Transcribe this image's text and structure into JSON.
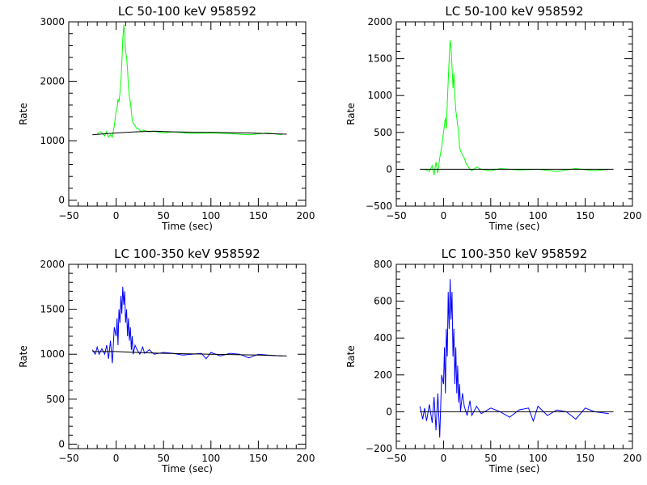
{
  "chart_data": [
    {
      "type": "line",
      "title": "LC 50-100 keV  958592",
      "xlabel": "Time (sec)",
      "ylabel": "Rate",
      "xlim": [
        -50,
        200
      ],
      "ylim": [
        -100,
        3000
      ],
      "xticks": [
        -50,
        0,
        50,
        100,
        150,
        200
      ],
      "yticks": [
        0,
        1000,
        2000,
        3000
      ],
      "series": [
        {
          "role": "data",
          "color": "#00ff00",
          "x": [
            -20,
            -16,
            -12,
            -10,
            -8,
            -6,
            -4,
            -2,
            0,
            1,
            2,
            3,
            4,
            5,
            6,
            7,
            8,
            9,
            10,
            11,
            12,
            13,
            14,
            15,
            16,
            17,
            18,
            20,
            22,
            24,
            26,
            28,
            30,
            35,
            40,
            50,
            60,
            80,
            100,
            120,
            140,
            160,
            175
          ],
          "y": [
            1120,
            1150,
            1080,
            1160,
            1060,
            1100,
            1060,
            1250,
            1500,
            1550,
            1700,
            1650,
            1800,
            2000,
            2300,
            2700,
            2950,
            2800,
            2500,
            2400,
            2200,
            1900,
            1750,
            1650,
            1500,
            1350,
            1300,
            1250,
            1200,
            1200,
            1150,
            1180,
            1170,
            1150,
            1160,
            1130,
            1150,
            1120,
            1130,
            1120,
            1100,
            1130,
            1100
          ]
        },
        {
          "role": "background",
          "color": "#000000",
          "x": [
            -25,
            0,
            20,
            40,
            60,
            100,
            140,
            180
          ],
          "y": [
            1100,
            1130,
            1150,
            1160,
            1150,
            1140,
            1130,
            1110
          ]
        }
      ]
    },
    {
      "type": "line",
      "title": "LC 50-100 keV  958592",
      "xlabel": "Time (sec)",
      "ylabel": "Rate",
      "xlim": [
        -50,
        200
      ],
      "ylim": [
        -500,
        2000
      ],
      "xticks": [
        -50,
        0,
        50,
        100,
        150,
        200
      ],
      "yticks": [
        -500,
        0,
        500,
        1000,
        1500,
        2000
      ],
      "series": [
        {
          "role": "data",
          "color": "#00ff00",
          "x": [
            -20,
            -15,
            -12,
            -10,
            -8,
            -6,
            -4,
            -2,
            0,
            1,
            2,
            3,
            4,
            5,
            6,
            7,
            8,
            9,
            10,
            11,
            12,
            13,
            14,
            15,
            16,
            17,
            18,
            20,
            22,
            24,
            26,
            28,
            30,
            35,
            40,
            50,
            60,
            80,
            100,
            120,
            140,
            160,
            175
          ],
          "y": [
            0,
            -30,
            50,
            -80,
            100,
            -50,
            150,
            300,
            500,
            600,
            700,
            550,
            900,
            1200,
            1500,
            1750,
            1650,
            1400,
            1100,
            1300,
            1000,
            800,
            700,
            600,
            500,
            300,
            250,
            200,
            150,
            80,
            40,
            0,
            -20,
            30,
            0,
            -20,
            10,
            -10,
            0,
            -30,
            10,
            -20,
            0
          ]
        },
        {
          "role": "background",
          "color": "#000000",
          "x": [
            -25,
            180
          ],
          "y": [
            0,
            0
          ]
        }
      ]
    },
    {
      "type": "line",
      "title": "LC 100-350 keV  958592",
      "xlabel": "Time (sec)",
      "ylabel": "Rate",
      "xlim": [
        -50,
        200
      ],
      "ylim": [
        -50,
        2000
      ],
      "xticks": [
        -50,
        0,
        50,
        100,
        150,
        200
      ],
      "yticks": [
        0,
        500,
        1000,
        1500,
        2000
      ],
      "series": [
        {
          "role": "data",
          "color": "#0000ff",
          "x": [
            -25,
            -22,
            -20,
            -18,
            -15,
            -12,
            -10,
            -8,
            -6,
            -4,
            -2,
            0,
            1,
            2,
            3,
            4,
            5,
            6,
            7,
            8,
            9,
            10,
            11,
            12,
            13,
            14,
            15,
            16,
            17,
            18,
            20,
            22,
            25,
            28,
            30,
            35,
            40,
            50,
            60,
            70,
            80,
            90,
            95,
            100,
            110,
            120,
            130,
            140,
            150,
            160,
            175
          ],
          "y": [
            1050,
            1000,
            1080,
            1000,
            1060,
            1000,
            1100,
            950,
            1150,
            900,
            1300,
            1200,
            1400,
            1100,
            1500,
            1350,
            1650,
            1450,
            1750,
            1550,
            1700,
            1350,
            1500,
            1200,
            1400,
            1150,
            1300,
            1050,
            1200,
            1000,
            1100,
            1050,
            1000,
            1080,
            1010,
            1050,
            1000,
            1020,
            1010,
            990,
            1000,
            1010,
            950,
            1020,
            980,
            1010,
            1000,
            960,
            1000,
            990,
            980
          ]
        },
        {
          "role": "background",
          "color": "#000000",
          "x": [
            -25,
            0,
            20,
            50,
            100,
            150,
            180
          ],
          "y": [
            1030,
            1030,
            1020,
            1010,
            1000,
            990,
            980
          ]
        }
      ]
    },
    {
      "type": "line",
      "title": "LC 100-350 keV  958592",
      "xlabel": "Time (sec)",
      "ylabel": "Rate",
      "xlim": [
        -50,
        200
      ],
      "ylim": [
        -200,
        800
      ],
      "xticks": [
        -50,
        0,
        50,
        100,
        150,
        200
      ],
      "yticks": [
        -200,
        0,
        200,
        400,
        600,
        800
      ],
      "series": [
        {
          "role": "data",
          "color": "#0000ff",
          "x": [
            -25,
            -22,
            -20,
            -18,
            -15,
            -12,
            -10,
            -8,
            -6,
            -4,
            -2,
            0,
            1,
            2,
            3,
            4,
            5,
            6,
            7,
            8,
            9,
            10,
            11,
            12,
            13,
            14,
            15,
            16,
            17,
            18,
            20,
            22,
            25,
            28,
            30,
            35,
            40,
            50,
            60,
            70,
            80,
            90,
            95,
            100,
            110,
            120,
            130,
            140,
            150,
            160,
            175
          ],
          "y": [
            30,
            -40,
            20,
            -50,
            40,
            -60,
            80,
            -100,
            100,
            -140,
            200,
            150,
            350,
            100,
            450,
            300,
            650,
            450,
            720,
            500,
            650,
            300,
            450,
            150,
            350,
            100,
            250,
            50,
            150,
            0,
            100,
            30,
            -20,
            60,
            -20,
            30,
            -10,
            20,
            0,
            -30,
            10,
            20,
            -50,
            30,
            -20,
            10,
            0,
            -40,
            20,
            0,
            -10
          ]
        },
        {
          "role": "background",
          "color": "#000000",
          "x": [
            -25,
            180
          ],
          "y": [
            0,
            0
          ]
        }
      ]
    }
  ]
}
